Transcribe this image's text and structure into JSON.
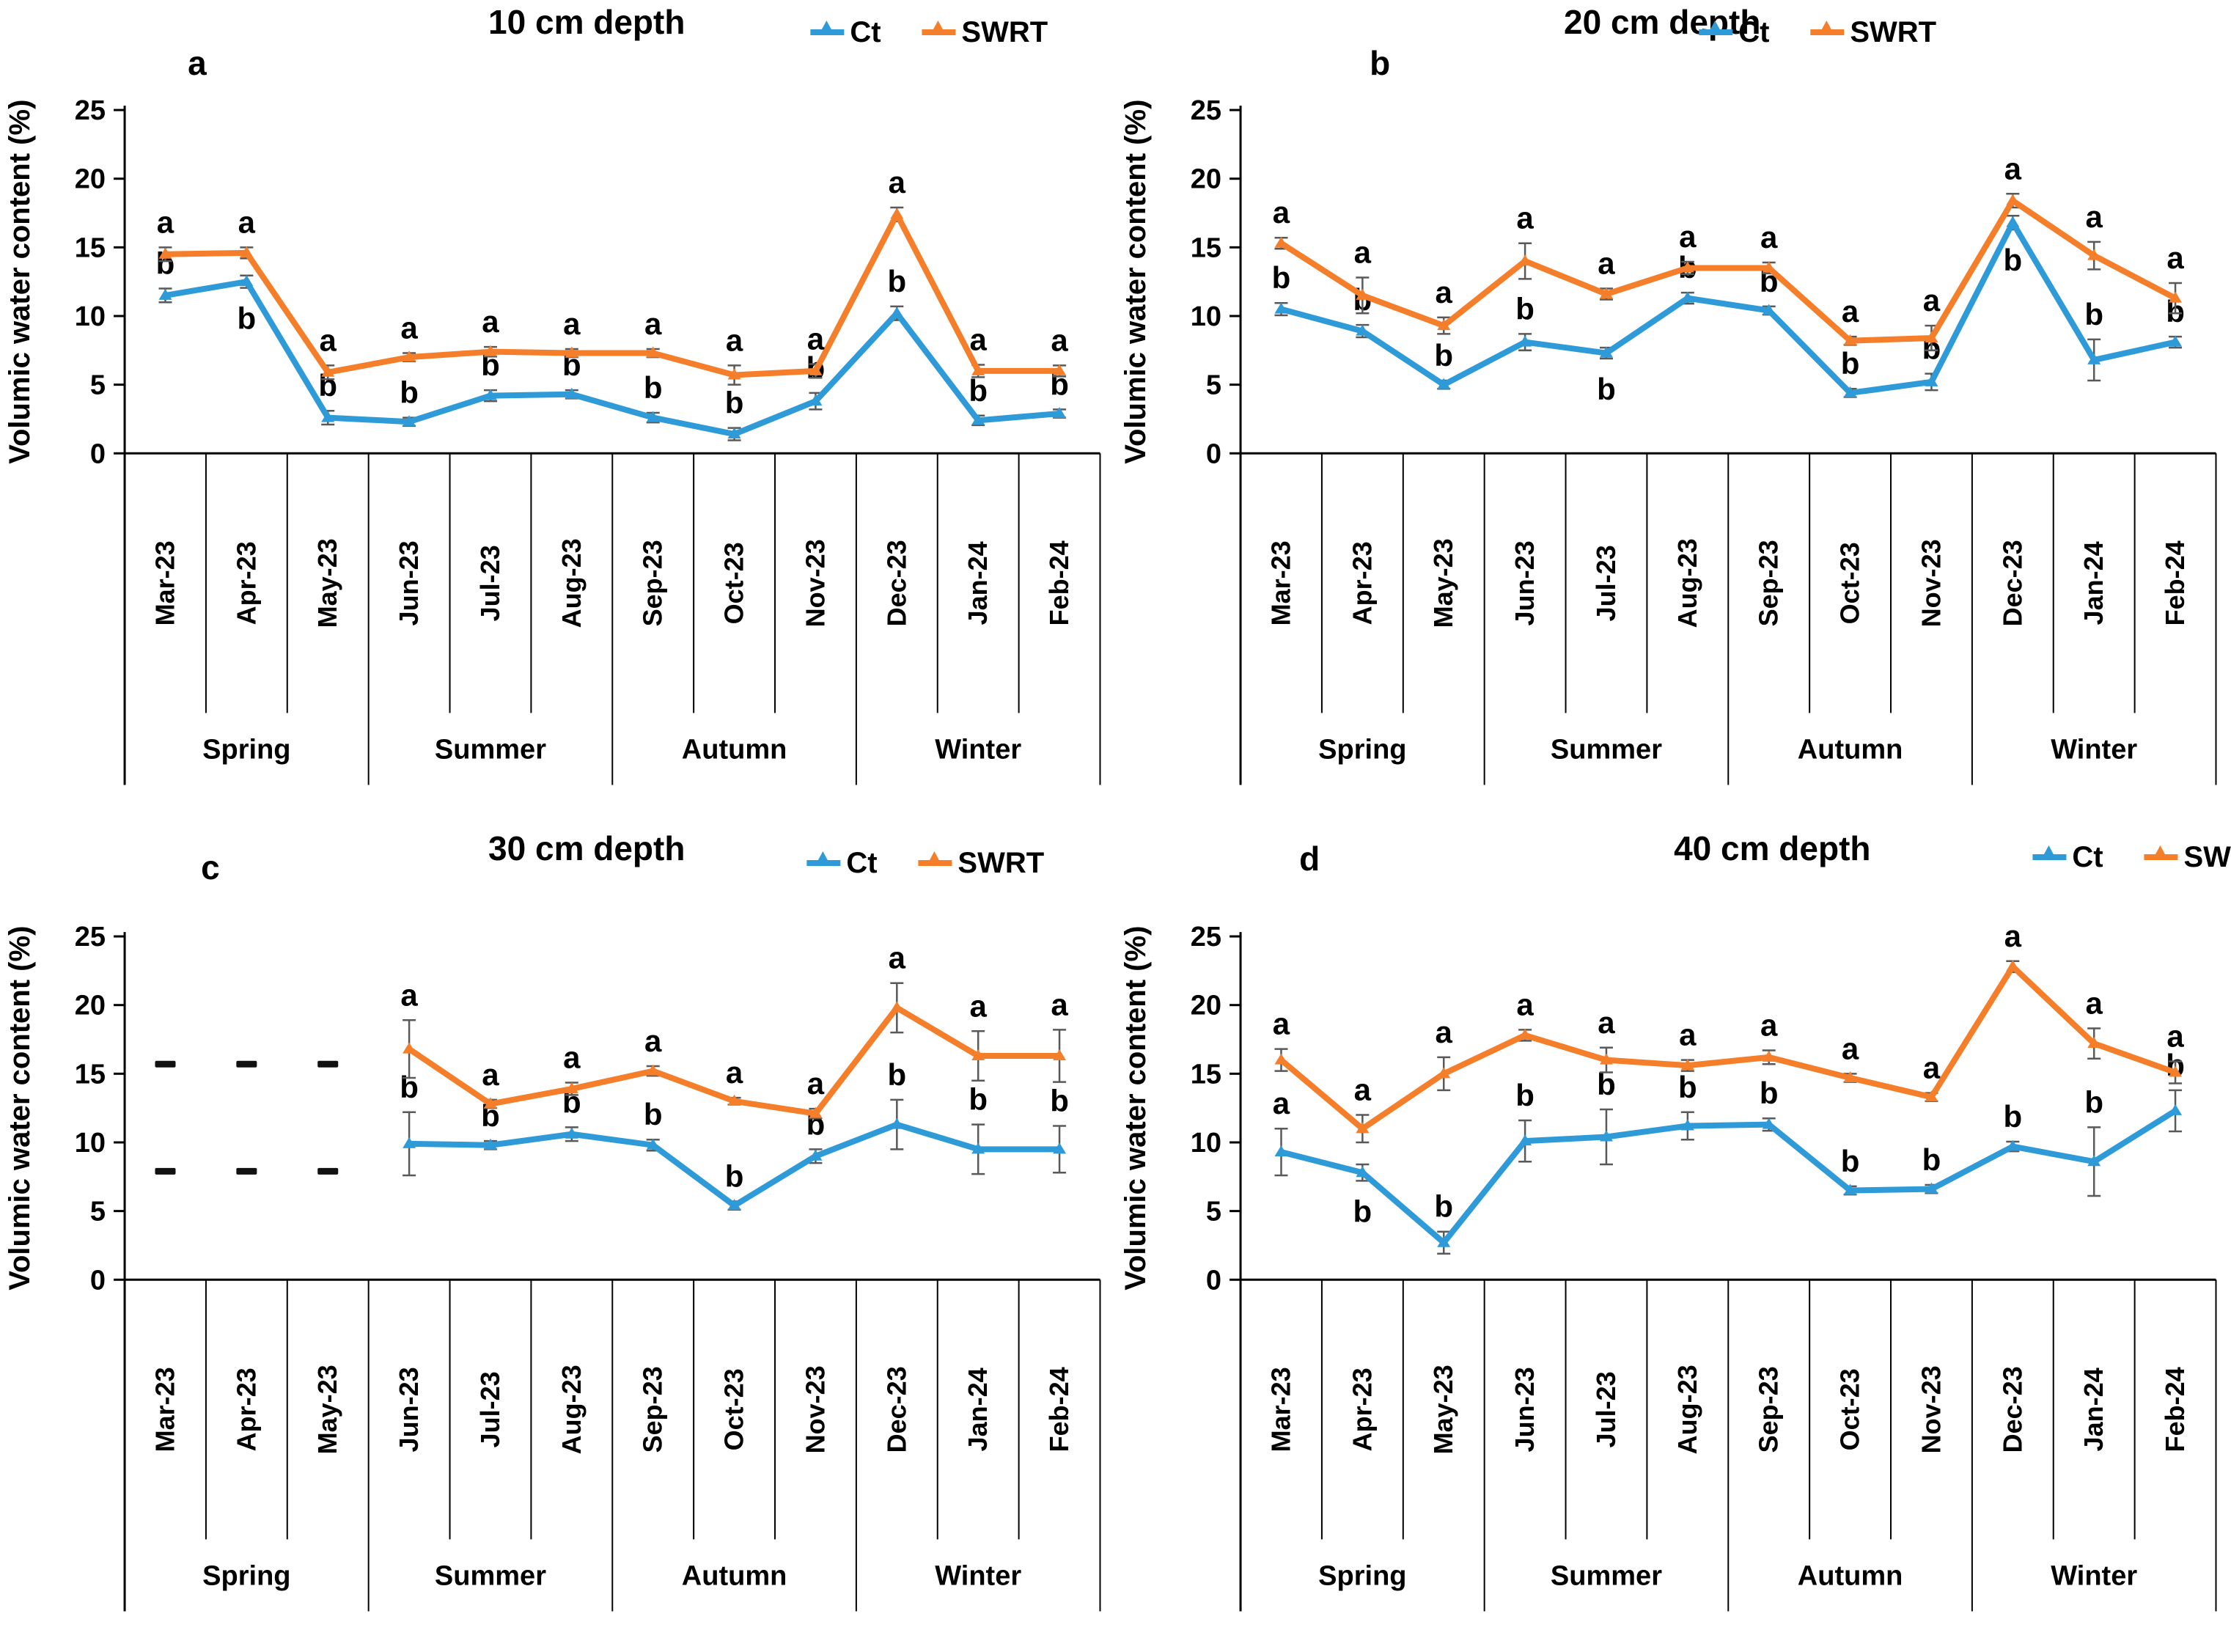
{
  "legend": {
    "ct": "Ct",
    "swrt": "SWRT"
  },
  "colors": {
    "ct": "#2E9BD8",
    "swrt": "#F57E2B",
    "error": "#595959",
    "axis": "#000000",
    "dash": "#111111"
  },
  "chart_data": [
    {
      "panel_letter": "a",
      "title": "10 cm depth",
      "type": "line",
      "ylabel": "Volumic water content (%)",
      "ylim": [
        0,
        25
      ],
      "y_ticks": [
        0,
        5,
        10,
        15,
        20,
        25
      ],
      "legend_position": "top-right",
      "grid": false,
      "categories": [
        "Mar-23",
        "Apr-23",
        "May-23",
        "Jun-23",
        "Jul-23",
        "Aug-23",
        "Sep-23",
        "Oct-23",
        "Nov-23",
        "Dec-23",
        "Jan-24",
        "Feb-24"
      ],
      "season_groups": [
        {
          "label": "Spring",
          "span": 3
        },
        {
          "label": "Summer",
          "span": 3
        },
        {
          "label": "Autumn",
          "span": 3
        },
        {
          "label": "Winter",
          "span": 3
        }
      ],
      "series": [
        {
          "name": "Ct",
          "color_key": "ct",
          "values": [
            11.5,
            12.5,
            2.6,
            2.3,
            4.2,
            4.3,
            2.6,
            1.4,
            3.8,
            10.2,
            2.4,
            2.9
          ],
          "errors": [
            0.5,
            0.45,
            0.5,
            0.3,
            0.4,
            0.3,
            0.35,
            0.45,
            0.6,
            0.5,
            0.35,
            0.3
          ],
          "letters": [
            "b",
            "b",
            "b",
            "b",
            "b",
            "b",
            "b",
            "b",
            "b",
            "b",
            "b",
            "b"
          ],
          "letters_below_idx": [
            1
          ]
        },
        {
          "name": "SWRT",
          "color_key": "swrt",
          "values": [
            14.5,
            14.6,
            5.9,
            7.0,
            7.4,
            7.3,
            7.3,
            5.7,
            6.0,
            17.4,
            6.0,
            6.0
          ],
          "errors": [
            0.5,
            0.4,
            0.5,
            0.3,
            0.35,
            0.3,
            0.3,
            0.7,
            0.5,
            0.5,
            0.45,
            0.4
          ],
          "letters": [
            "a",
            "a",
            "a",
            "a",
            "a",
            "a",
            "a",
            "a",
            "a",
            "a",
            "a",
            "a"
          ],
          "letters_below_idx": []
        }
      ]
    },
    {
      "panel_letter": "b",
      "title": "20 cm depth",
      "type": "line",
      "ylabel": "Volumic water content (%)",
      "ylim": [
        0,
        25
      ],
      "y_ticks": [
        0,
        5,
        10,
        15,
        20,
        25
      ],
      "legend_position": "top-right",
      "grid": false,
      "categories": [
        "Mar-23",
        "Apr-23",
        "May-23",
        "Jun-23",
        "Jul-23",
        "Aug-23",
        "Sep-23",
        "Oct-23",
        "Nov-23",
        "Dec-23",
        "Jan-24",
        "Feb-24"
      ],
      "season_groups": [
        {
          "label": "Spring",
          "span": 3
        },
        {
          "label": "Summer",
          "span": 3
        },
        {
          "label": "Autumn",
          "span": 3
        },
        {
          "label": "Winter",
          "span": 3
        }
      ],
      "series": [
        {
          "name": "Ct",
          "color_key": "ct",
          "values": [
            10.5,
            8.9,
            5.0,
            8.1,
            7.3,
            11.3,
            10.4,
            4.4,
            5.2,
            16.8,
            6.8,
            8.1
          ],
          "errors": [
            0.45,
            0.45,
            0.3,
            0.6,
            0.4,
            0.4,
            0.3,
            0.3,
            0.6,
            0.5,
            1.5,
            0.4
          ],
          "letters": [
            "b",
            "b",
            "b",
            "b",
            "b",
            "b",
            "b",
            "b",
            "b",
            "b",
            "b",
            "b"
          ],
          "letters_below_idx": [
            4,
            9
          ]
        },
        {
          "name": "SWRT",
          "color_key": "swrt",
          "values": [
            15.3,
            11.5,
            9.3,
            14.0,
            11.6,
            13.5,
            13.5,
            8.2,
            8.4,
            18.4,
            14.4,
            11.3
          ],
          "errors": [
            0.4,
            1.3,
            0.6,
            1.3,
            0.4,
            0.45,
            0.4,
            0.3,
            0.9,
            0.5,
            1.0,
            1.1
          ],
          "letters": [
            "a",
            "a",
            "a",
            "a",
            "a",
            "a",
            "a",
            "a",
            "a",
            "a",
            "a",
            "a"
          ],
          "letters_below_idx": []
        }
      ]
    },
    {
      "panel_letter": "c",
      "title": "30 cm depth",
      "type": "line",
      "ylabel": "Volumic water content (%)",
      "ylim": [
        0,
        25
      ],
      "y_ticks": [
        0,
        5,
        10,
        15,
        20,
        25
      ],
      "legend_position": "top-right",
      "grid": false,
      "categories": [
        "Mar-23",
        "Apr-23",
        "May-23",
        "Jun-23",
        "Jul-23",
        "Aug-23",
        "Sep-23",
        "Oct-23",
        "Nov-23",
        "Dec-23",
        "Jan-24",
        "Feb-24"
      ],
      "season_groups": [
        {
          "label": "Spring",
          "span": 3
        },
        {
          "label": "Summer",
          "span": 3
        },
        {
          "label": "Autumn",
          "span": 3
        },
        {
          "label": "Winter",
          "span": 3
        }
      ],
      "missing_months": [
        0,
        1,
        2
      ],
      "missing_marker_values": [
        15.7,
        7.9
      ],
      "series": [
        {
          "name": "Ct",
          "color_key": "ct",
          "values": [
            null,
            null,
            null,
            9.9,
            9.8,
            10.6,
            9.8,
            5.4,
            9.0,
            11.3,
            9.5,
            9.5
          ],
          "errors": [
            null,
            null,
            null,
            2.3,
            0.3,
            0.5,
            0.4,
            0.3,
            0.5,
            1.8,
            1.8,
            1.7
          ],
          "letters": [
            null,
            null,
            null,
            "b",
            "b",
            "b",
            "b",
            "b",
            "b",
            "b",
            "b",
            "b"
          ],
          "letters_below_idx": []
        },
        {
          "name": "SWRT",
          "color_key": "swrt",
          "values": [
            null,
            null,
            null,
            16.8,
            12.8,
            13.9,
            15.2,
            13.0,
            12.1,
            19.8,
            16.3,
            16.3
          ],
          "errors": [
            null,
            null,
            null,
            2.1,
            0.3,
            0.45,
            0.35,
            0.25,
            0.35,
            1.8,
            1.8,
            1.9
          ],
          "letters": [
            null,
            null,
            null,
            "a",
            "a",
            "a",
            "a",
            "a",
            "a",
            "a",
            "a",
            "a"
          ],
          "letters_below_idx": []
        }
      ]
    },
    {
      "panel_letter": "d",
      "title": "40 cm depth",
      "type": "line",
      "ylabel": "Volumic water content (%)",
      "ylim": [
        0,
        25
      ],
      "y_ticks": [
        0,
        5,
        10,
        15,
        20,
        25
      ],
      "legend_position": "top-right",
      "grid": false,
      "categories": [
        "Mar-23",
        "Apr-23",
        "May-23",
        "Jun-23",
        "Jul-23",
        "Aug-23",
        "Sep-23",
        "Oct-23",
        "Nov-23",
        "Dec-23",
        "Jan-24",
        "Feb-24"
      ],
      "season_groups": [
        {
          "label": "Spring",
          "span": 3
        },
        {
          "label": "Summer",
          "span": 3
        },
        {
          "label": "Autumn",
          "span": 3
        },
        {
          "label": "Winter",
          "span": 3
        }
      ],
      "series": [
        {
          "name": "Ct",
          "color_key": "ct",
          "values": [
            9.3,
            7.8,
            2.7,
            10.1,
            10.4,
            11.2,
            11.3,
            6.5,
            6.6,
            9.7,
            8.6,
            12.3
          ],
          "errors": [
            1.7,
            0.6,
            0.8,
            1.5,
            2.0,
            1.0,
            0.45,
            0.3,
            0.3,
            0.35,
            2.5,
            1.5
          ],
          "letters": [
            "a",
            "b",
            "b",
            "b",
            "b",
            "b",
            "b",
            "b",
            "b",
            "b",
            "b",
            "b"
          ],
          "letters_below_idx": [
            1
          ]
        },
        {
          "name": "SWRT",
          "color_key": "swrt",
          "values": [
            16.0,
            11.0,
            15.0,
            17.8,
            16.0,
            15.6,
            16.2,
            14.7,
            13.3,
            22.8,
            17.2,
            15.1
          ],
          "errors": [
            0.8,
            1.0,
            1.2,
            0.4,
            0.9,
            0.4,
            0.5,
            0.3,
            0.3,
            0.4,
            1.1,
            0.8
          ],
          "letters": [
            "a",
            "a",
            "a",
            "a",
            "a",
            "a",
            "a",
            "a",
            "a",
            "a",
            "a",
            "a"
          ],
          "letters_below_idx": []
        }
      ]
    }
  ]
}
